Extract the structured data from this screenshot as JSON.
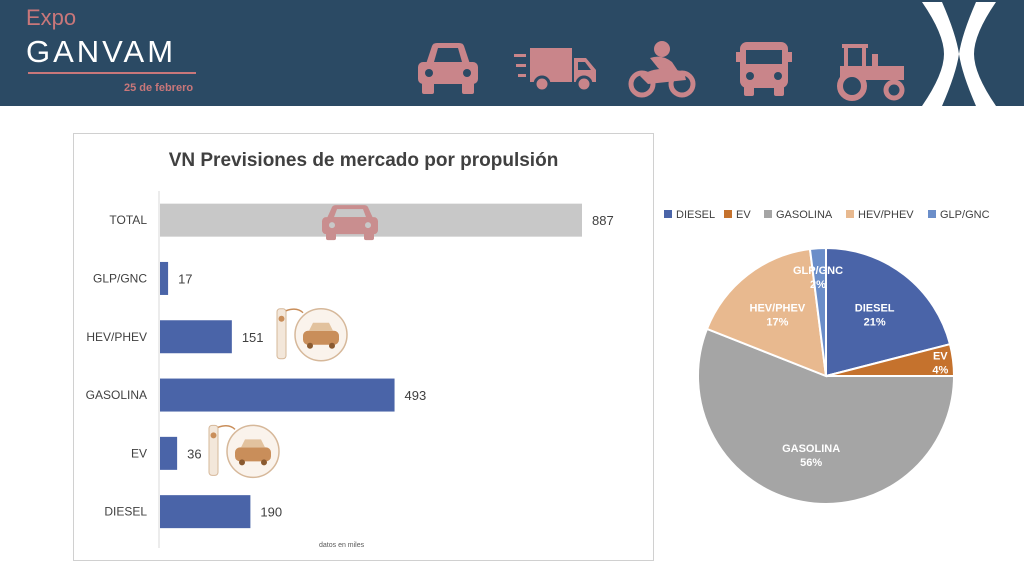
{
  "header": {
    "logo_expo": "Expo",
    "logo_name": "GANVAM",
    "date": "25 de febrero",
    "icons": [
      "car-icon",
      "truck-icon",
      "motorcycle-icon",
      "bus-icon",
      "tractor-icon"
    ],
    "brand_color": "#2b4a64",
    "accent_color": "#c9777a"
  },
  "chart_data": [
    {
      "type": "bar",
      "orientation": "horizontal",
      "title": "VN Previsiones de mercado por propulsión",
      "categories": [
        "TOTAL",
        "GLP/GNC",
        "HEV/PHEV",
        "GASOLINA",
        "EV",
        "DIESEL"
      ],
      "values": [
        887,
        17,
        151,
        493,
        36,
        190
      ],
      "bar_colors": [
        "#c8c8c8",
        "#4a64a8",
        "#4a64a8",
        "#4a64a8",
        "#4a64a8",
        "#4a64a8"
      ],
      "xlim": [
        0,
        887
      ],
      "grid": false,
      "footnote": "datos en miles"
    },
    {
      "type": "pie",
      "legend_position": "top",
      "slices": [
        {
          "label": "DIESEL",
          "percent": "21%",
          "value": 21,
          "color": "#4a64a8"
        },
        {
          "label": "EV",
          "percent": "4%",
          "value": 4,
          "color": "#c5722d"
        },
        {
          "label": "GASOLINA",
          "percent": "56%",
          "value": 56,
          "color": "#a5a5a5"
        },
        {
          "label": "HEV/PHEV",
          "percent": "17%",
          "value": 17,
          "color": "#e8b98f"
        },
        {
          "label": "GLP/GNC",
          "percent": "2%",
          "value": 2,
          "color": "#6b8ec9"
        }
      ]
    }
  ]
}
